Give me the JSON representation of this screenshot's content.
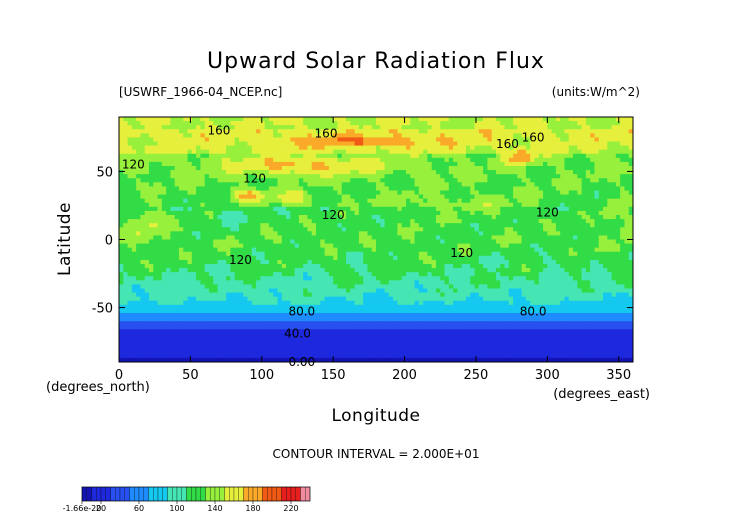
{
  "chart_data": {
    "type": "heatmap",
    "title": "Upward Solar Radiation Flux",
    "file_label": "[USWRF_1966-04_NCEP.nc]",
    "units_label": "(units:W/m^2)",
    "xlabel": "Longitude",
    "ylabel": "Latitude",
    "x_unit_label": "(degrees_east)",
    "y_unit_label": "(degrees_north)",
    "xlim": [
      0,
      360
    ],
    "ylim": [
      -90,
      90
    ],
    "x_ticks": [
      0,
      50,
      100,
      150,
      200,
      250,
      300,
      350
    ],
    "y_ticks": [
      50,
      0,
      -50
    ],
    "contour_interval_label": "CONTOUR INTERVAL = 2.000E+01",
    "contour_labels": [
      "160",
      "160",
      "160",
      "160",
      "120",
      "120",
      "120",
      "120",
      "120",
      "120",
      "80.0",
      "80.0",
      "40.0",
      "0.00"
    ],
    "colorbar_ticks": [
      "-1.66e-20",
      "20",
      "60",
      "100",
      "140",
      "180",
      "220"
    ],
    "colorbar_range": [
      0,
      240
    ],
    "levels": [
      {
        "min": -10,
        "max": 10,
        "color": "#1414b4"
      },
      {
        "min": 10,
        "max": 30,
        "color": "#1e28dc"
      },
      {
        "min": 30,
        "max": 50,
        "color": "#2850f0"
      },
      {
        "min": 50,
        "max": 70,
        "color": "#1e8cff"
      },
      {
        "min": 70,
        "max": 90,
        "color": "#14c8f0"
      },
      {
        "min": 90,
        "max": 110,
        "color": "#46e6b4"
      },
      {
        "min": 110,
        "max": 130,
        "color": "#32dc46"
      },
      {
        "min": 130,
        "max": 150,
        "color": "#96f03c"
      },
      {
        "min": 150,
        "max": 170,
        "color": "#e6f03c"
      },
      {
        "min": 170,
        "max": 190,
        "color": "#faaa28"
      },
      {
        "min": 190,
        "max": 210,
        "color": "#f05a14"
      },
      {
        "min": 210,
        "max": 230,
        "color": "#e61e1e"
      },
      {
        "min": 230,
        "max": 250,
        "color": "#f08ca0"
      }
    ]
  }
}
